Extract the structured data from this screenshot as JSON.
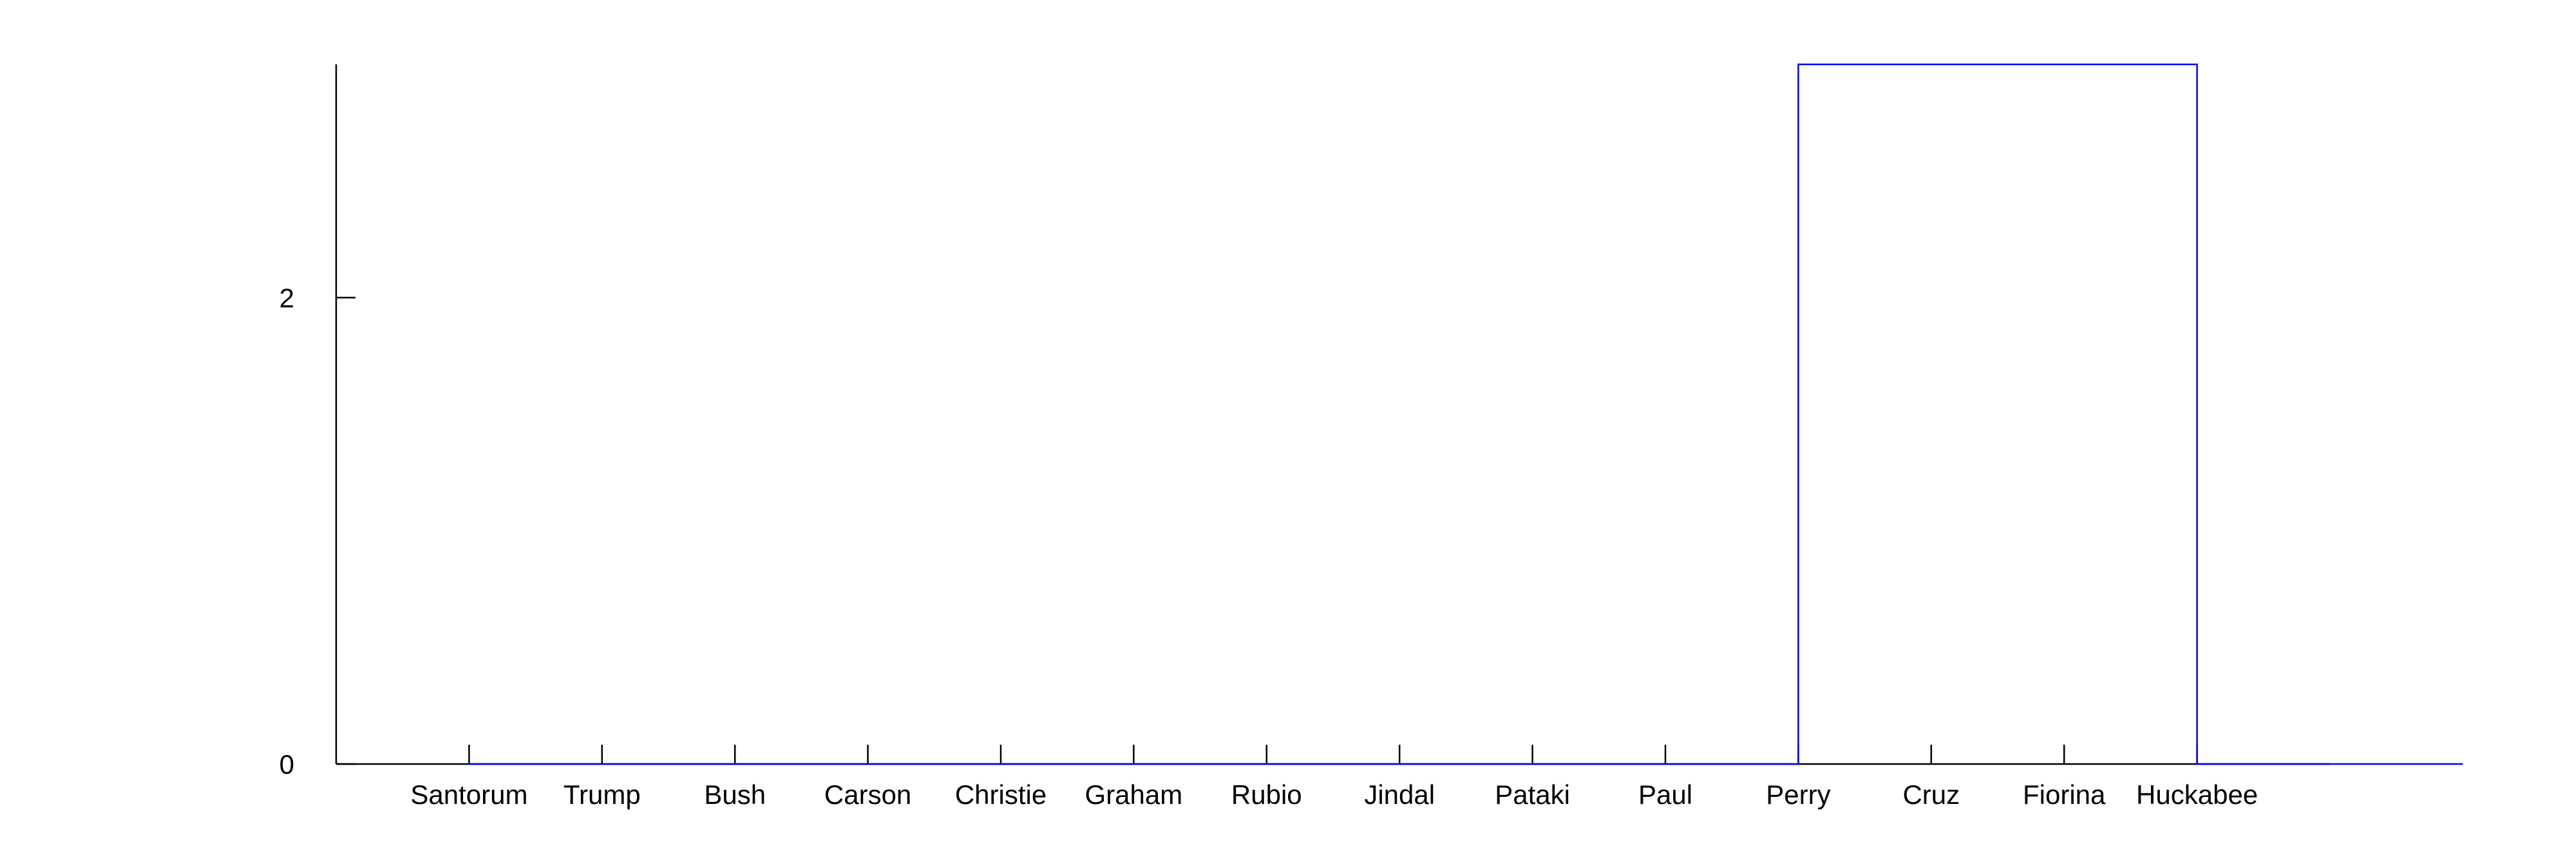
{
  "chart_data": {
    "type": "line",
    "subtype": "step",
    "title": "",
    "xlabel": "",
    "ylabel": "",
    "categories": [
      "Santorum",
      "Trump",
      "Bush",
      "Carson",
      "Christie",
      "Graham",
      "Rubio",
      "Jindal",
      "Pataki",
      "Paul",
      "Perry",
      "Cruz",
      "Fiorina",
      "Huckabee"
    ],
    "x": [
      0,
      1,
      2,
      3,
      4,
      5,
      6,
      7,
      8,
      9,
      10,
      11,
      12,
      13,
      14,
      15
    ],
    "y": [
      0,
      0,
      0,
      0,
      0,
      0,
      0,
      0,
      0,
      0,
      3,
      3,
      3,
      0,
      0,
      0
    ],
    "xlim": [
      -1,
      14
    ],
    "ylim": [
      0,
      3
    ],
    "yticks": [
      0,
      2
    ],
    "ytick_labels": [
      "0",
      "2"
    ],
    "grid": false,
    "legend": "none",
    "colors": {
      "series": "#0000ff",
      "axes": "#000000",
      "background": "#ffffff"
    }
  }
}
